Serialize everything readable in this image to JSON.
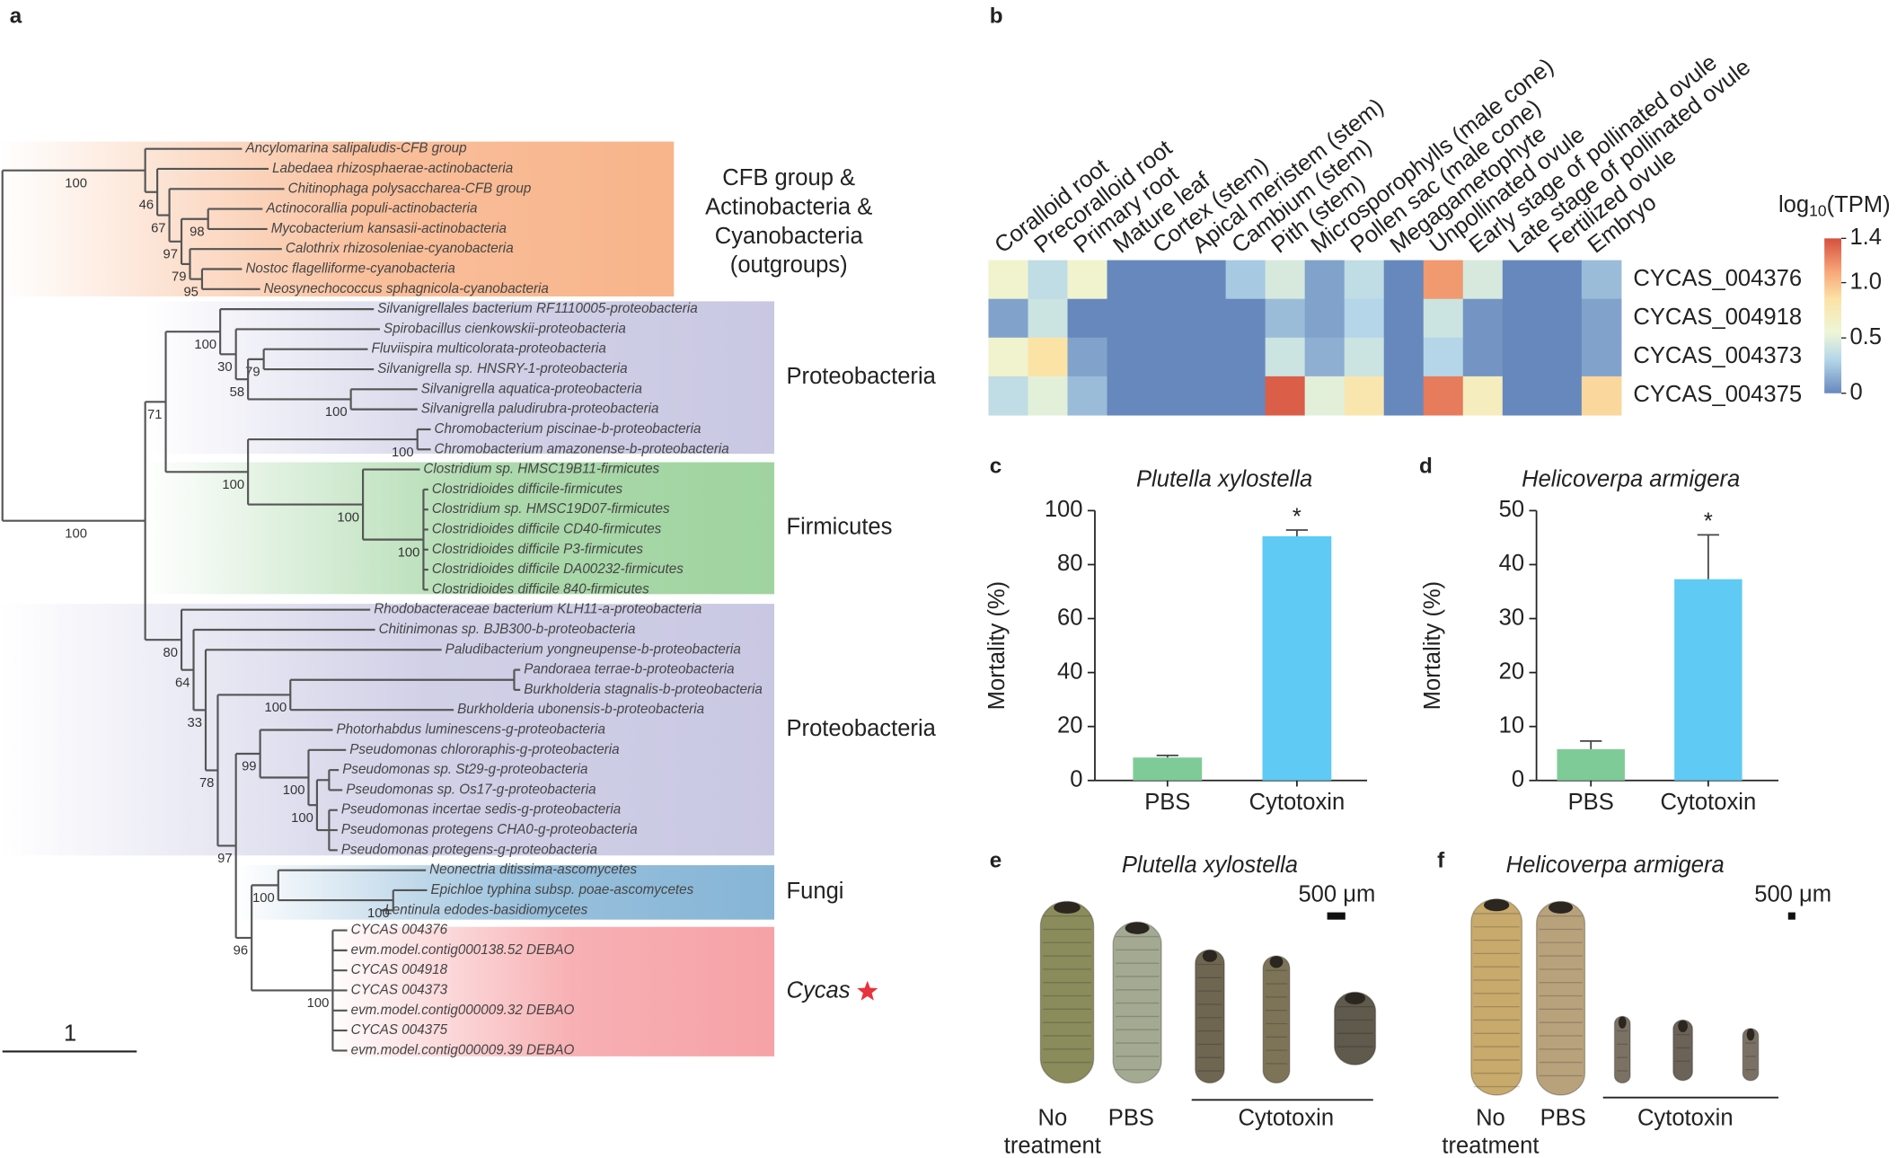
{
  "panel_labels": [
    "a",
    "b",
    "c",
    "d",
    "e",
    "f"
  ],
  "tree": {
    "leaves": [
      "Ancylomarina salipaludis-CFB group",
      "Labedaea rhizosphaerae-actinobacteria",
      "Chitinophaga polysaccharea-CFB group",
      "Actinocorallia populi-actinobacteria",
      "Mycobacterium kansasii-actinobacteria",
      "Calothrix rhizosoleniae-cyanobacteria",
      "Nostoc flagelliforme-cyanobacteria",
      "Neosynechococcus sphagnicola-cyanobacteria",
      "Silvanigrellales bacterium RF1110005-proteobacteria",
      "Spirobacillus cienkowskii-proteobacteria",
      "Fluviispira multicolorata-proteobacteria",
      "Silvanigrella sp. HNSRY-1-proteobacteria",
      "Silvanigrella aquatica-proteobacteria",
      "Silvanigrella paludirubra-proteobacteria",
      "Chromobacterium piscinae-b-proteobacteria",
      "Chromobacterium amazonense-b-proteobacteria",
      "Clostridium sp. HMSC19B11-firmicutes",
      "Clostridioides difficile-firmicutes",
      "Clostridium sp. HMSC19D07-firmicutes",
      "Clostridioides difficile CD40-firmicutes",
      "Clostridioides difficile P3-firmicutes",
      "Clostridioides difficile DA00232-firmicutes",
      "Clostridioides difficile 840-firmicutes",
      "Rhodobacteraceae bacterium KLH11-a-proteobacteria",
      "Chitinimonas sp. BJB300-b-proteobacteria",
      "Paludibacterium yongneupense-b-proteobacteria",
      "Pandoraea terrae-b-proteobacteria",
      "Burkholderia stagnalis-b-proteobacteria",
      "Burkholderia ubonensis-b-proteobacteria",
      "Photorhabdus luminescens-g-proteobacteria",
      "Pseudomonas chlororaphis-g-proteobacteria",
      "Pseudomonas sp. St29-g-proteobacteria",
      "Pseudomonas sp. Os17-g-proteobacteria",
      "Pseudomonas incertae sedis-g-proteobacteria",
      "Pseudomonas protegens CHA0-g-proteobacteria",
      "Pseudomonas protegens-g-proteobacteria",
      "Neonectria ditissima-ascomycetes",
      "Epichloe typhina subsp. poae-ascomycetes",
      "Lentinula edodes-basidiomycetes",
      "CYCAS 004376",
      "evm.model.contig000138.52 DEBAO",
      "CYCAS 004918",
      "CYCAS 004373",
      "evm.model.contig000009.32 DEBAO",
      "CYCAS 004375",
      "evm.model.contig000009.39 DEBAO"
    ],
    "bootstrap": [
      100,
      46,
      67,
      97,
      98,
      79,
      95,
      100,
      71,
      100,
      30,
      58,
      79,
      100,
      100,
      100,
      100,
      100,
      80,
      64,
      33,
      78,
      100,
      97,
      99,
      100,
      100,
      96,
      100,
      100,
      100
    ],
    "clades": [
      {
        "lines": [
          "CFB group &",
          "Actinobacteria &",
          "Cyanobacteria",
          "(outgroups)"
        ],
        "color": "#f8b48a"
      },
      {
        "lines": [
          "Proteobacteria"
        ],
        "color": "#c9c8e3"
      },
      {
        "lines": [
          "Firmicutes"
        ],
        "color": "#9fd39f"
      },
      {
        "lines": [
          "Proteobacteria"
        ],
        "color": "#c9c8e3"
      },
      {
        "lines": [
          "Fungi"
        ],
        "color": "#86b5d6"
      },
      {
        "lines": [
          "Cycas"
        ],
        "color": "#f6a2a6"
      }
    ],
    "scale_label": "1"
  },
  "chart_data": [
    {
      "type": "heatmap",
      "x": [
        "Coralloid root",
        "Precoralloid root",
        "Primary root",
        "Mature leaf",
        "Cortex (stem)",
        "Apical meristem (stem)",
        "Cambium (stem)",
        "Pith (stem)",
        "Microsporophylls (male cone)",
        "Pollen sac (male cone)",
        "Megagametophyte",
        "Unpollinated ovule",
        "Early stage of pollinated ovule",
        "Late stage of pollinated ovule",
        "Fertilized ovule",
        "Embryo"
      ],
      "y": [
        "CYCAS_004376",
        "CYCAS_004918",
        "CYCAS_004373",
        "CYCAS_004375"
      ],
      "values": [
        [
          0.6,
          0.35,
          0.6,
          0,
          0,
          0,
          0.25,
          0.45,
          0.1,
          0.35,
          0,
          1.15,
          0.45,
          0,
          0,
          0.2
        ],
        [
          0.1,
          0.4,
          0,
          0,
          0,
          0,
          0,
          0.2,
          0.1,
          0.3,
          0,
          0.4,
          0.05,
          0,
          0,
          0.1
        ],
        [
          0.6,
          0.85,
          0.1,
          0,
          0,
          0,
          0,
          0.4,
          0.15,
          0.4,
          0,
          0.3,
          0.05,
          0,
          0,
          0.1
        ],
        [
          0.35,
          0.5,
          0.2,
          0,
          0,
          0,
          0,
          1.35,
          0.5,
          0.8,
          0,
          1.25,
          0.7,
          0,
          0,
          0.9
        ]
      ],
      "colorbar_label": [
        "log",
        "10",
        "(TPM)"
      ],
      "zlim": [
        0,
        1.4
      ],
      "zticks": [
        0,
        0.5,
        {
          "value": 1,
          "label": "1.0"
        },
        1.4
      ],
      "colorscale": [
        [
          0,
          "#6788bc"
        ],
        [
          0.3,
          "#b4d6e8"
        ],
        [
          0.55,
          "#eef6d6"
        ],
        [
          0.85,
          "#fbe3a6"
        ],
        [
          1.1,
          "#f7a778"
        ],
        [
          1.4,
          "#d5503f"
        ]
      ]
    },
    {
      "type": "bar",
      "title": "Plutella xylostella",
      "ylabel": "Mortality (%)",
      "categories": [
        "PBS",
        "Cytotoxin"
      ],
      "values": [
        8.5,
        90.5
      ],
      "errors": [
        0.8,
        2.3
      ],
      "significance": [
        null,
        "*"
      ],
      "colors": [
        "#7fcb97",
        "#5fcaf4"
      ],
      "ylim": [
        0,
        100
      ],
      "yticks": [
        0,
        20,
        40,
        60,
        80,
        100
      ]
    },
    {
      "type": "bar",
      "title": "Helicoverpa armigera",
      "ylabel": "Mortality (%)",
      "categories": [
        "PBS",
        "Cytotoxin"
      ],
      "values": [
        5.8,
        37.3
      ],
      "errors": [
        1.5,
        8.2
      ],
      "significance": [
        null,
        "*"
      ],
      "colors": [
        "#7fcb97",
        "#5fcaf4"
      ],
      "ylim": [
        0,
        50
      ],
      "yticks": [
        0,
        10,
        20,
        30,
        40,
        50
      ]
    }
  ],
  "photos": [
    {
      "title": "Plutella xylostella",
      "scale_label": "500 μm",
      "groups": [
        {
          "lines": [
            "No",
            "treatment"
          ]
        },
        {
          "lines": [
            "PBS"
          ]
        },
        {
          "lines": [
            "Cytotoxin"
          ]
        }
      ]
    },
    {
      "title": "Helicoverpa armigera",
      "scale_label": "500 μm",
      "groups": [
        {
          "lines": [
            "No",
            "treatment"
          ]
        },
        {
          "lines": [
            "PBS"
          ]
        },
        {
          "lines": [
            "Cytotoxin"
          ]
        }
      ]
    }
  ]
}
